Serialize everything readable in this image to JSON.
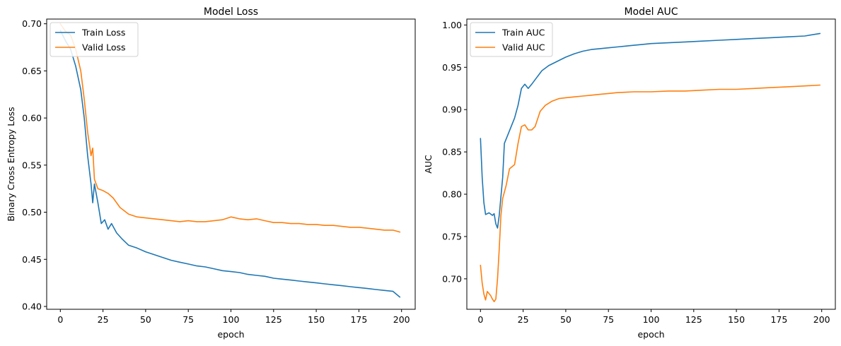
{
  "chart_data": [
    {
      "type": "line",
      "title": "Model Loss",
      "xlabel": "epoch",
      "ylabel": "Binary Cross Entropy Loss",
      "xlim": [
        -8,
        208
      ],
      "ylim": [
        0.397,
        0.705
      ],
      "xticks": [
        0,
        25,
        50,
        75,
        100,
        125,
        150,
        175,
        200
      ],
      "yticks": [
        0.4,
        0.45,
        0.5,
        0.55,
        0.6,
        0.65,
        0.7
      ],
      "ytick_decimals": 2,
      "grid": false,
      "legend_position": "top-left",
      "series": [
        {
          "name": "Train Loss",
          "color": "#1f77b4",
          "points": [
            [
              0,
              0.693
            ],
            [
              3,
              0.682
            ],
            [
              6,
              0.673
            ],
            [
              9,
              0.655
            ],
            [
              12,
              0.63
            ],
            [
              14,
              0.6
            ],
            [
              16,
              0.56
            ],
            [
              18,
              0.53
            ],
            [
              19,
              0.51
            ],
            [
              20,
              0.53
            ],
            [
              22,
              0.51
            ],
            [
              24,
              0.488
            ],
            [
              26,
              0.492
            ],
            [
              28,
              0.482
            ],
            [
              30,
              0.488
            ],
            [
              33,
              0.478
            ],
            [
              36,
              0.472
            ],
            [
              40,
              0.465
            ],
            [
              45,
              0.462
            ],
            [
              50,
              0.458
            ],
            [
              55,
              0.455
            ],
            [
              60,
              0.452
            ],
            [
              65,
              0.449
            ],
            [
              70,
              0.447
            ],
            [
              75,
              0.445
            ],
            [
              80,
              0.443
            ],
            [
              85,
              0.442
            ],
            [
              90,
              0.44
            ],
            [
              95,
              0.438
            ],
            [
              100,
              0.437
            ],
            [
              105,
              0.436
            ],
            [
              110,
              0.434
            ],
            [
              115,
              0.433
            ],
            [
              120,
              0.432
            ],
            [
              125,
              0.43
            ],
            [
              130,
              0.429
            ],
            [
              135,
              0.428
            ],
            [
              140,
              0.427
            ],
            [
              145,
              0.426
            ],
            [
              150,
              0.425
            ],
            [
              155,
              0.424
            ],
            [
              160,
              0.423
            ],
            [
              165,
              0.422
            ],
            [
              170,
              0.421
            ],
            [
              175,
              0.42
            ],
            [
              180,
              0.419
            ],
            [
              185,
              0.418
            ],
            [
              190,
              0.417
            ],
            [
              195,
              0.416
            ],
            [
              199,
              0.41
            ]
          ]
        },
        {
          "name": "Valid Loss",
          "color": "#ff7f0e",
          "points": [
            [
              0,
              0.7
            ],
            [
              3,
              0.692
            ],
            [
              6,
              0.688
            ],
            [
              9,
              0.673
            ],
            [
              12,
              0.65
            ],
            [
              14,
              0.62
            ],
            [
              16,
              0.585
            ],
            [
              18,
              0.56
            ],
            [
              19,
              0.568
            ],
            [
              20,
              0.535
            ],
            [
              22,
              0.525
            ],
            [
              25,
              0.523
            ],
            [
              28,
              0.52
            ],
            [
              31,
              0.515
            ],
            [
              35,
              0.505
            ],
            [
              40,
              0.498
            ],
            [
              45,
              0.495
            ],
            [
              50,
              0.494
            ],
            [
              55,
              0.493
            ],
            [
              60,
              0.492
            ],
            [
              65,
              0.491
            ],
            [
              70,
              0.49
            ],
            [
              75,
              0.491
            ],
            [
              80,
              0.49
            ],
            [
              85,
              0.49
            ],
            [
              90,
              0.491
            ],
            [
              95,
              0.492
            ],
            [
              100,
              0.495
            ],
            [
              105,
              0.493
            ],
            [
              110,
              0.492
            ],
            [
              115,
              0.493
            ],
            [
              120,
              0.491
            ],
            [
              125,
              0.489
            ],
            [
              130,
              0.489
            ],
            [
              135,
              0.488
            ],
            [
              140,
              0.488
            ],
            [
              145,
              0.487
            ],
            [
              150,
              0.487
            ],
            [
              155,
              0.486
            ],
            [
              160,
              0.486
            ],
            [
              165,
              0.485
            ],
            [
              170,
              0.484
            ],
            [
              175,
              0.484
            ],
            [
              180,
              0.483
            ],
            [
              185,
              0.482
            ],
            [
              190,
              0.481
            ],
            [
              195,
              0.481
            ],
            [
              199,
              0.479
            ]
          ]
        }
      ]
    },
    {
      "type": "line",
      "title": "Model AUC",
      "xlabel": "epoch",
      "ylabel": "AUC",
      "xlim": [
        -8,
        208
      ],
      "ylim": [
        0.664,
        1.007
      ],
      "xticks": [
        0,
        25,
        50,
        75,
        100,
        125,
        150,
        175,
        200
      ],
      "yticks": [
        0.7,
        0.75,
        0.8,
        0.85,
        0.9,
        0.95,
        1.0
      ],
      "ytick_decimals": 2,
      "grid": false,
      "legend_position": "top-left",
      "series": [
        {
          "name": "Train AUC",
          "color": "#1f77b4",
          "points": [
            [
              0,
              0.866
            ],
            [
              1,
              0.82
            ],
            [
              2,
              0.79
            ],
            [
              3,
              0.776
            ],
            [
              5,
              0.778
            ],
            [
              7,
              0.775
            ],
            [
              8,
              0.777
            ],
            [
              9,
              0.765
            ],
            [
              10,
              0.76
            ],
            [
              11,
              0.775
            ],
            [
              13,
              0.82
            ],
            [
              14,
              0.86
            ],
            [
              16,
              0.87
            ],
            [
              18,
              0.88
            ],
            [
              20,
              0.89
            ],
            [
              22,
              0.905
            ],
            [
              24,
              0.925
            ],
            [
              26,
              0.93
            ],
            [
              28,
              0.925
            ],
            [
              30,
              0.93
            ],
            [
              33,
              0.938
            ],
            [
              36,
              0.946
            ],
            [
              40,
              0.952
            ],
            [
              45,
              0.957
            ],
            [
              50,
              0.962
            ],
            [
              55,
              0.966
            ],
            [
              60,
              0.969
            ],
            [
              65,
              0.971
            ],
            [
              70,
              0.972
            ],
            [
              75,
              0.973
            ],
            [
              80,
              0.974
            ],
            [
              85,
              0.975
            ],
            [
              90,
              0.976
            ],
            [
              95,
              0.977
            ],
            [
              100,
              0.978
            ],
            [
              110,
              0.979
            ],
            [
              120,
              0.98
            ],
            [
              130,
              0.981
            ],
            [
              140,
              0.982
            ],
            [
              150,
              0.983
            ],
            [
              160,
              0.984
            ],
            [
              170,
              0.985
            ],
            [
              180,
              0.986
            ],
            [
              190,
              0.987
            ],
            [
              199,
              0.99
            ]
          ]
        },
        {
          "name": "Valid AUC",
          "color": "#ff7f0e",
          "points": [
            [
              0,
              0.716
            ],
            [
              1,
              0.695
            ],
            [
              2,
              0.682
            ],
            [
              3,
              0.675
            ],
            [
              4,
              0.685
            ],
            [
              6,
              0.68
            ],
            [
              7,
              0.676
            ],
            [
              8,
              0.673
            ],
            [
              9,
              0.676
            ],
            [
              10,
              0.7
            ],
            [
              11,
              0.735
            ],
            [
              12,
              0.775
            ],
            [
              13,
              0.795
            ],
            [
              15,
              0.81
            ],
            [
              17,
              0.83
            ],
            [
              20,
              0.835
            ],
            [
              22,
              0.86
            ],
            [
              24,
              0.88
            ],
            [
              26,
              0.882
            ],
            [
              28,
              0.876
            ],
            [
              30,
              0.876
            ],
            [
              32,
              0.88
            ],
            [
              35,
              0.898
            ],
            [
              38,
              0.905
            ],
            [
              42,
              0.91
            ],
            [
              46,
              0.913
            ],
            [
              50,
              0.914
            ],
            [
              55,
              0.915
            ],
            [
              60,
              0.916
            ],
            [
              65,
              0.917
            ],
            [
              70,
              0.918
            ],
            [
              75,
              0.919
            ],
            [
              80,
              0.92
            ],
            [
              90,
              0.921
            ],
            [
              100,
              0.921
            ],
            [
              110,
              0.922
            ],
            [
              120,
              0.922
            ],
            [
              130,
              0.923
            ],
            [
              140,
              0.924
            ],
            [
              150,
              0.924
            ],
            [
              160,
              0.925
            ],
            [
              170,
              0.926
            ],
            [
              180,
              0.927
            ],
            [
              190,
              0.928
            ],
            [
              199,
              0.929
            ]
          ]
        }
      ]
    }
  ]
}
